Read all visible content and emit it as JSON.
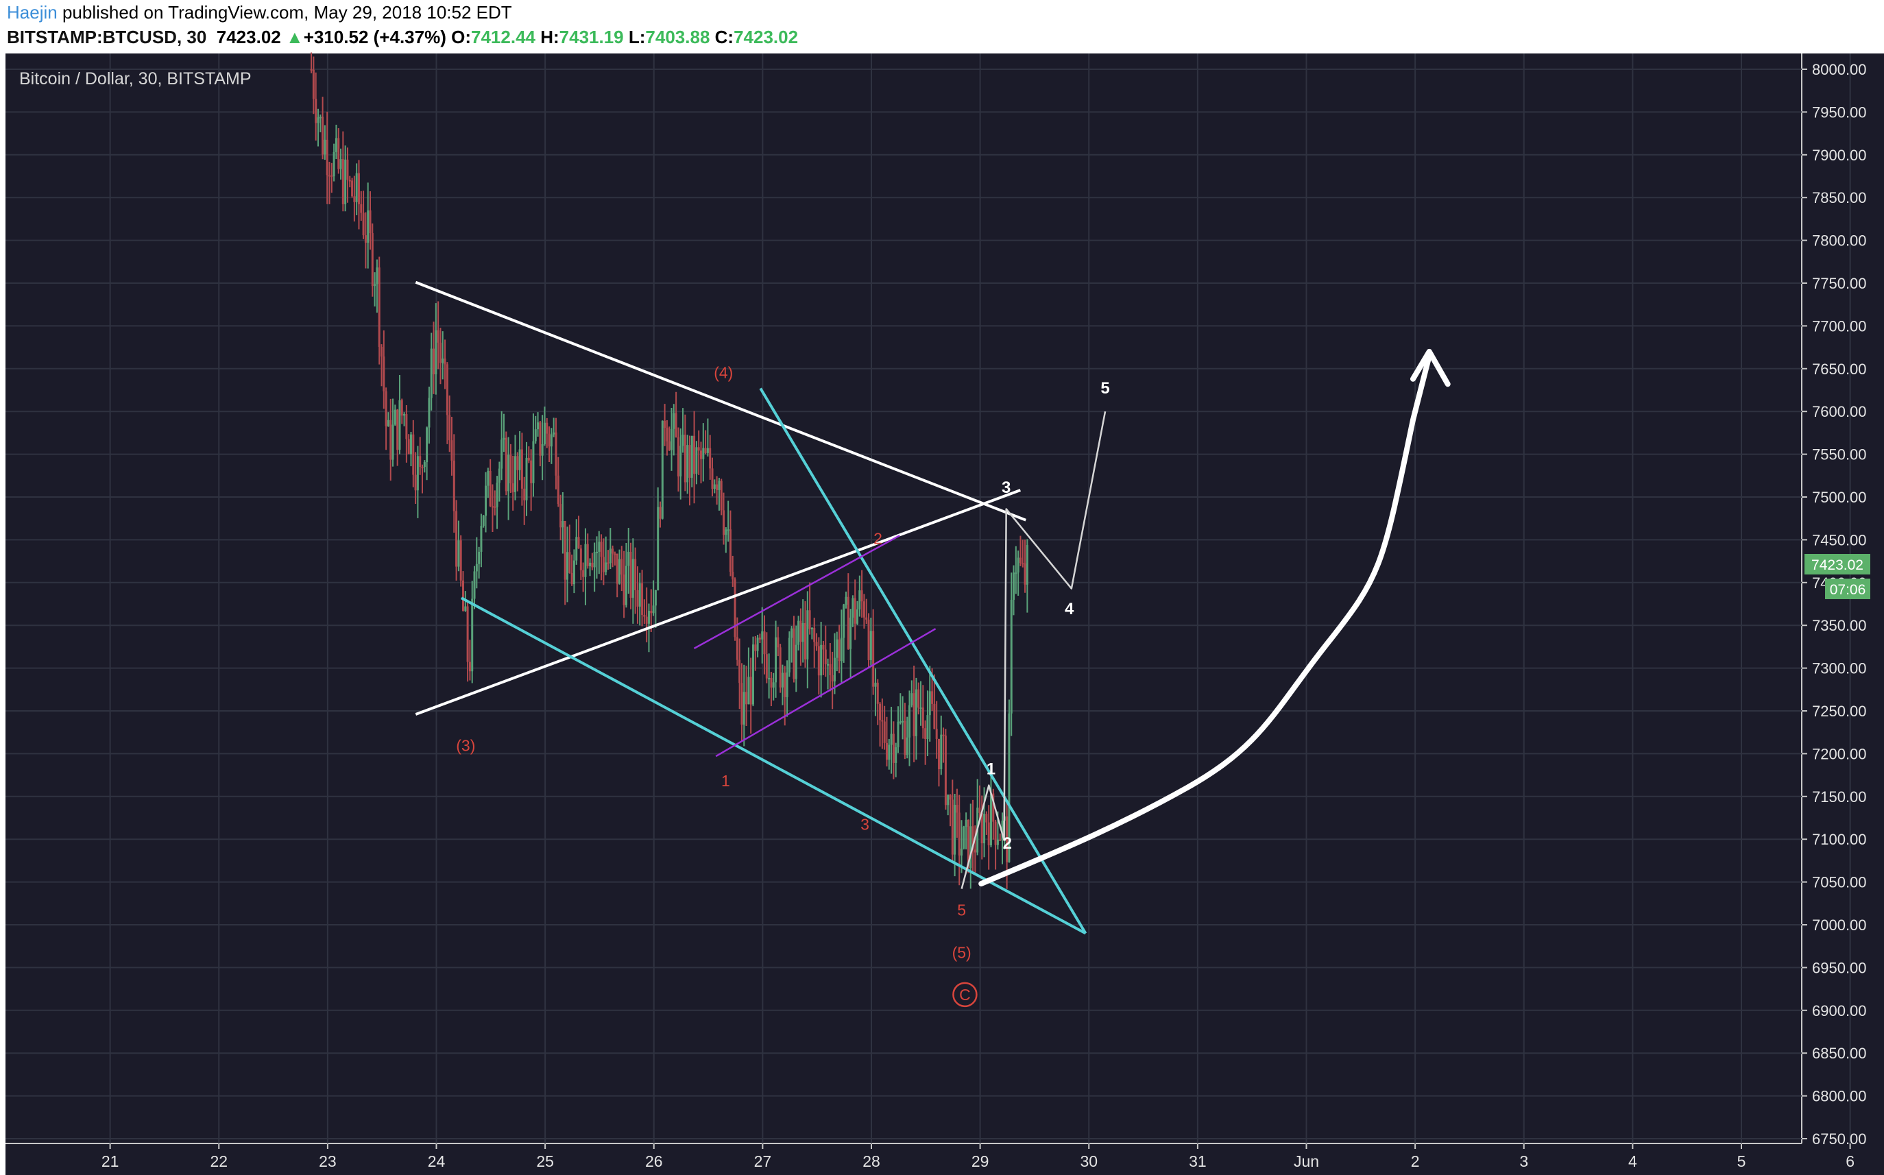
{
  "header": {
    "author": "Haejin",
    "published_text": "published on TradingView.com, May 29, 2018 10:52 EDT",
    "symbol": "BITSTAMP:BTCUSD, 30",
    "last_price": "7423.02",
    "change_arrow": "▲",
    "change": "+310.52 (+4.37%)",
    "open_label": "O:",
    "open": "7412.44",
    "high_label": "H:",
    "high": "7431.19",
    "low_label": "L:",
    "low": "7403.88",
    "close_label": "C:",
    "close": "7423.02"
  },
  "colors": {
    "background": "#1b1b29",
    "grid": "#2f3240",
    "candle_up": "#5aa27a",
    "candle_down": "#b24a4e",
    "triangle_lines": "#ffffff",
    "wedge_lines": "#55d0d6",
    "channel_lines": "#9b30d9",
    "red_labels": "#d8453c",
    "price_badge": "#5cb16a"
  },
  "chart_data": {
    "type": "candlestick",
    "title": "Bitcoin / Dollar, 30, BITSTAMP",
    "x_ticks": [
      "21",
      "22",
      "23",
      "24",
      "25",
      "26",
      "27",
      "28",
      "29",
      "30",
      "31",
      "Jun",
      "2",
      "3",
      "4",
      "5",
      "6"
    ],
    "y_ticks": [
      "8000.00",
      "7950.00",
      "7900.00",
      "7850.00",
      "7800.00",
      "7750.00",
      "7700.00",
      "7650.00",
      "7600.00",
      "7550.00",
      "7500.00",
      "7450.00",
      "7400.00",
      "7350.00",
      "7300.00",
      "7250.00",
      "7200.00",
      "7150.00",
      "7100.00",
      "7050.00",
      "7000.00",
      "6950.00",
      "6900.00",
      "6850.00",
      "6800.00",
      "6750.00"
    ],
    "ylim": [
      6750,
      8020
    ],
    "xlim": [
      20.0,
      37.15
    ],
    "price_badge": "7423.02",
    "time_badge": "07:06",
    "price_path": [
      [
        22.85,
        8000
      ],
      [
        22.95,
        7920
      ],
      [
        23.1,
        7880
      ],
      [
        23.3,
        7840
      ],
      [
        23.45,
        7760
      ],
      [
        23.55,
        7560
      ],
      [
        23.7,
        7600
      ],
      [
        23.85,
        7520
      ],
      [
        24.0,
        7700
      ],
      [
        24.1,
        7600
      ],
      [
        24.2,
        7420
      ],
      [
        24.3,
        7300
      ],
      [
        24.4,
        7480
      ],
      [
        24.6,
        7540
      ],
      [
        24.8,
        7520
      ],
      [
        25.0,
        7580
      ],
      [
        25.1,
        7560
      ],
      [
        25.2,
        7400
      ],
      [
        25.4,
        7450
      ],
      [
        25.6,
        7420
      ],
      [
        25.8,
        7400
      ],
      [
        26.0,
        7380
      ],
      [
        26.1,
        7600
      ],
      [
        26.25,
        7540
      ],
      [
        26.45,
        7540
      ],
      [
        26.6,
        7530
      ],
      [
        26.7,
        7420
      ],
      [
        26.8,
        7240
      ],
      [
        26.9,
        7290
      ],
      [
        27.0,
        7320
      ],
      [
        27.2,
        7300
      ],
      [
        27.4,
        7340
      ],
      [
        27.6,
        7300
      ],
      [
        27.8,
        7360
      ],
      [
        27.95,
        7380
      ],
      [
        28.05,
        7230
      ],
      [
        28.15,
        7220
      ],
      [
        28.3,
        7230
      ],
      [
        28.45,
        7260
      ],
      [
        28.55,
        7240
      ],
      [
        28.65,
        7200
      ],
      [
        28.75,
        7110
      ],
      [
        28.85,
        7090
      ],
      [
        28.95,
        7100
      ],
      [
        29.05,
        7130
      ],
      [
        29.15,
        7120
      ],
      [
        29.25,
        7100
      ],
      [
        29.3,
        7440
      ],
      [
        29.4,
        7400
      ],
      [
        29.45,
        7423
      ]
    ],
    "annotations": [
      {
        "text": "(4)",
        "x": 26.64,
        "y": 7639,
        "color": "red"
      },
      {
        "text": "(3)",
        "x": 24.27,
        "y": 7203,
        "color": "red"
      },
      {
        "text": "(5)",
        "x": 28.83,
        "y": 6961,
        "color": "red"
      },
      {
        "text": "C",
        "x": 28.86,
        "y": 6912,
        "color": "red",
        "circled": true
      },
      {
        "text": "1",
        "x": 26.66,
        "y": 7162,
        "color": "red"
      },
      {
        "text": "2",
        "x": 28.06,
        "y": 7445,
        "color": "red"
      },
      {
        "text": "3",
        "x": 27.94,
        "y": 7111,
        "color": "red"
      },
      {
        "text": "5",
        "x": 28.83,
        "y": 7011,
        "color": "red"
      },
      {
        "text": "3",
        "x": 29.24,
        "y": 7505,
        "color": "white"
      },
      {
        "text": "1",
        "x": 29.1,
        "y": 7176,
        "color": "white"
      },
      {
        "text": "2",
        "x": 29.25,
        "y": 7089,
        "color": "white"
      },
      {
        "text": "4",
        "x": 29.82,
        "y": 7363,
        "color": "white"
      },
      {
        "text": "5",
        "x": 30.15,
        "y": 7621,
        "color": "white"
      }
    ]
  }
}
